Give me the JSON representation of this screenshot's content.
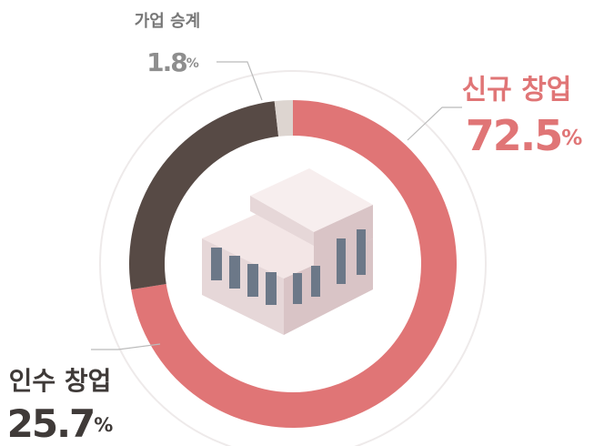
{
  "chart_data": {
    "type": "donut",
    "categories": [
      "신규 창업",
      "인수 창업",
      "가업 승계"
    ],
    "values": [
      72.5,
      25.7,
      1.8
    ],
    "value_labels": [
      "72.5%",
      "25.7%",
      "1.8%"
    ],
    "colors": [
      "#e07576",
      "#574a45",
      "#ddd5d0"
    ]
  }
}
